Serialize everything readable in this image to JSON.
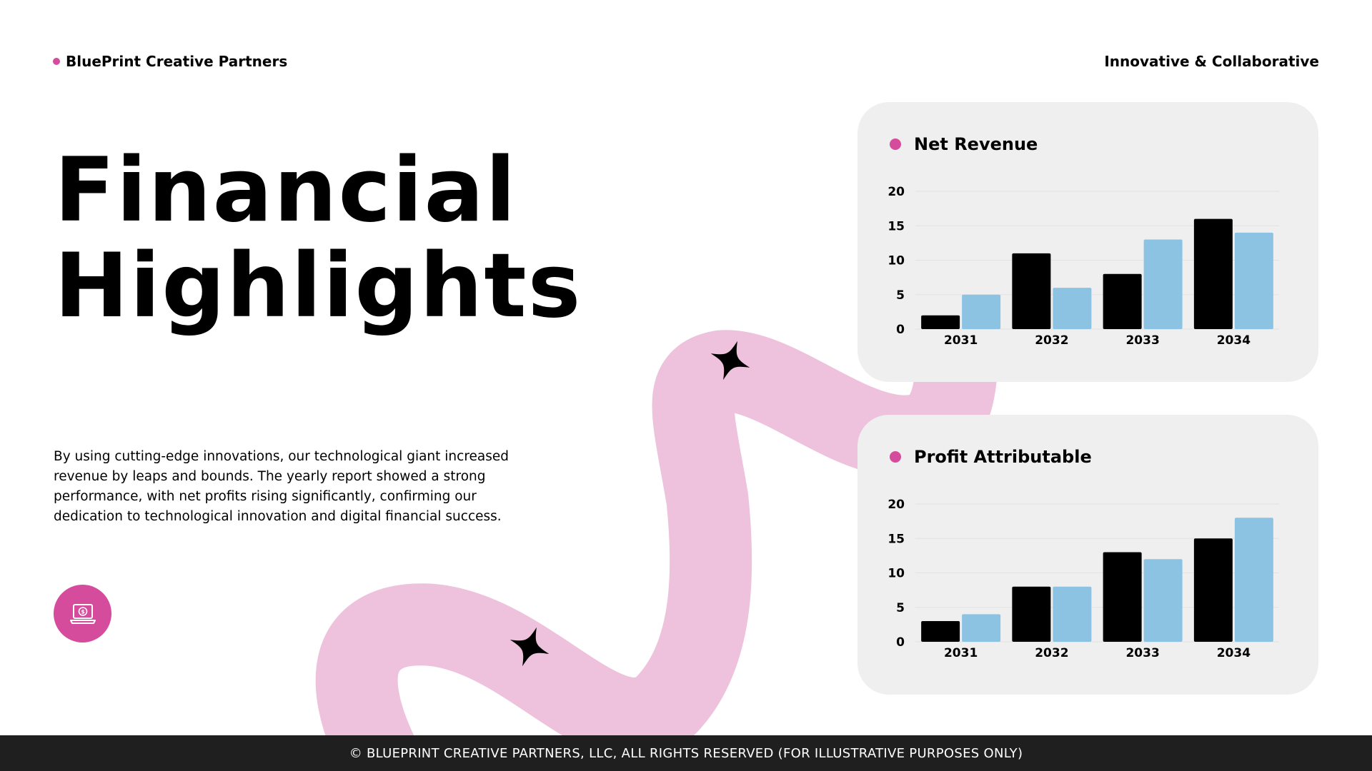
{
  "header": {
    "brand": "BluePrint Creative Partners",
    "tagline": "Innovative & Collaborative"
  },
  "title": {
    "line1": "Financial",
    "line2": "Highlights"
  },
  "description": "By using cutting-edge innovations, our technological giant increased revenue by leaps and bounds. The yearly report showed a strong performance, with net profits rising significantly, confirming our dedication to technological innovation and digital financial success.",
  "icons": {
    "feature": "laptop-dollar-icon",
    "brand_dot": "dot-icon",
    "decorations": [
      "sparkle-icon",
      "sparkle-icon"
    ]
  },
  "colors": {
    "accent": "#d44c9b",
    "ribbon": "#eec1dc",
    "bar_dark": "#000000",
    "bar_light": "#8cc3e3",
    "card_bg": "#efefef",
    "footer_bg": "#1f1f1f"
  },
  "footer": {
    "text": "© BLUEPRINT CREATIVE PARTNERS, LLC, ALL RIGHTS RESERVED (FOR ILLUSTRATIVE PURPOSES ONLY)"
  },
  "chart_data": [
    {
      "type": "bar",
      "title": "Net Revenue",
      "categories": [
        "2031",
        "2032",
        "2033",
        "2034"
      ],
      "series": [
        {
          "values": [
            2,
            11,
            8,
            16
          ]
        },
        {
          "values": [
            5,
            6,
            13,
            14
          ]
        }
      ],
      "ylim": [
        0,
        20
      ],
      "yticks": [
        0,
        5,
        10,
        15,
        20
      ],
      "grid": true,
      "legend": "none"
    },
    {
      "type": "bar",
      "title": "Profit Attributable",
      "categories": [
        "2031",
        "2032",
        "2033",
        "2034"
      ],
      "series": [
        {
          "values": [
            3,
            8,
            13,
            15
          ]
        },
        {
          "values": [
            4,
            8,
            12,
            18
          ]
        }
      ],
      "ylim": [
        0,
        20
      ],
      "yticks": [
        0,
        5,
        10,
        15,
        20
      ],
      "grid": true,
      "legend": "none"
    }
  ]
}
